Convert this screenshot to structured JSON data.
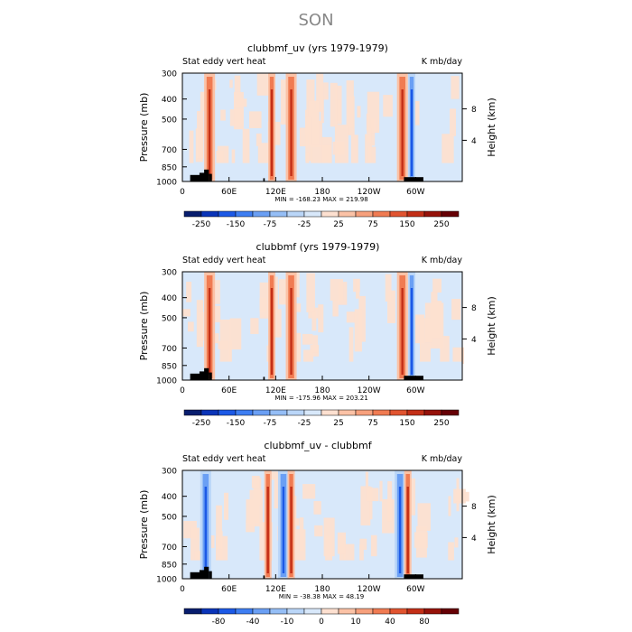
{
  "suptitle": "SON",
  "colors": {
    "cbar_main": [
      "#081d6e",
      "#0a34b8",
      "#1c59e6",
      "#3e7ef2",
      "#6a9ff4",
      "#95bef6",
      "#bad6f8",
      "#d8e8fa",
      "#fde0d0",
      "#fbc2a6",
      "#f7a07c",
      "#f07b52",
      "#e15430",
      "#c32f17",
      "#96120a",
      "#660005"
    ],
    "cbar_diff": [
      "#081d6e",
      "#0a34b8",
      "#1c59e6",
      "#3e7ef2",
      "#6a9ff4",
      "#95bef6",
      "#bad6f8",
      "#d8e8fa",
      "#fde0d0",
      "#fbc2a6",
      "#f7a07c",
      "#f07b52",
      "#e15430",
      "#c32f17",
      "#96120a",
      "#660005"
    ],
    "terrain": "#000000"
  },
  "chart_data": [
    {
      "type": "heatmap",
      "title": "clubbmf_uv (yrs 1979-1979)",
      "left_string": "Stat eddy vert heat",
      "right_string": "K mb/day",
      "ylabel": "Pressure (mb)",
      "ylabel_right": "Height (km)",
      "xticks": [
        "0",
        "60E",
        "120E",
        "180",
        "120W",
        "60W"
      ],
      "yticks": [
        "300",
        "400",
        "500",
        "700",
        "850",
        "1000"
      ],
      "height_ticks": [
        "8",
        "4"
      ],
      "ylim": [
        1000,
        300
      ],
      "xlim": [
        0,
        360
      ],
      "minmax": "MIN = -168.23   MAX = 219.98",
      "cbar_labels": [
        "-250",
        "-150",
        "-75",
        "-25",
        "25",
        "75",
        "150",
        "250"
      ],
      "features": [
        {
          "lon": 35,
          "sign": 1,
          "strength": "strong"
        },
        {
          "lon": 115,
          "sign": 1,
          "strength": "moderate"
        },
        {
          "lon": 140,
          "sign": 1,
          "strength": "strong"
        },
        {
          "lon": 283,
          "sign": 1,
          "strength": "strong"
        },
        {
          "lon": 295,
          "sign": -1,
          "strength": "moderate"
        }
      ]
    },
    {
      "type": "heatmap",
      "title": "clubbmf (yrs 1979-1979)",
      "left_string": "Stat eddy vert heat",
      "right_string": "K mb/day",
      "ylabel": "Pressure (mb)",
      "ylabel_right": "Height (km)",
      "xticks": [
        "0",
        "60E",
        "120E",
        "180",
        "120W",
        "60W"
      ],
      "yticks": [
        "300",
        "400",
        "500",
        "700",
        "850",
        "1000"
      ],
      "height_ticks": [
        "8",
        "4"
      ],
      "ylim": [
        1000,
        300
      ],
      "xlim": [
        0,
        360
      ],
      "minmax": "MIN = -175.96   MAX = 203.21",
      "cbar_labels": [
        "-250",
        "-150",
        "-75",
        "-25",
        "25",
        "75",
        "150",
        "250"
      ],
      "features": [
        {
          "lon": 35,
          "sign": 1,
          "strength": "strong"
        },
        {
          "lon": 115,
          "sign": 1,
          "strength": "moderate"
        },
        {
          "lon": 140,
          "sign": 1,
          "strength": "strong"
        },
        {
          "lon": 283,
          "sign": 1,
          "strength": "strong"
        },
        {
          "lon": 295,
          "sign": -1,
          "strength": "moderate"
        }
      ]
    },
    {
      "type": "heatmap",
      "title": "clubbmf_uv - clubbmf",
      "left_string": "Stat eddy vert heat",
      "right_string": "K mb/day",
      "ylabel": "Pressure (mb)",
      "ylabel_right": "Height (km)",
      "xticks": [
        "0",
        "60E",
        "120E",
        "180",
        "120W",
        "60W"
      ],
      "yticks": [
        "300",
        "400",
        "500",
        "700",
        "850",
        "1000"
      ],
      "height_ticks": [
        "8",
        "4"
      ],
      "ylim": [
        1000,
        300
      ],
      "xlim": [
        0,
        360
      ],
      "minmax": "MIN = -38.38   MAX = 48.19",
      "cbar_labels": [
        "-80",
        "-40",
        "-10",
        "0",
        "10",
        "40",
        "80"
      ],
      "features": [
        {
          "lon": 30,
          "sign": -1,
          "strength": "strong"
        },
        {
          "lon": 110,
          "sign": 1,
          "strength": "moderate"
        },
        {
          "lon": 130,
          "sign": -1,
          "strength": "strong"
        },
        {
          "lon": 140,
          "sign": 1,
          "strength": "moderate"
        },
        {
          "lon": 280,
          "sign": -1,
          "strength": "strong"
        },
        {
          "lon": 290,
          "sign": 1,
          "strength": "moderate"
        }
      ]
    }
  ]
}
